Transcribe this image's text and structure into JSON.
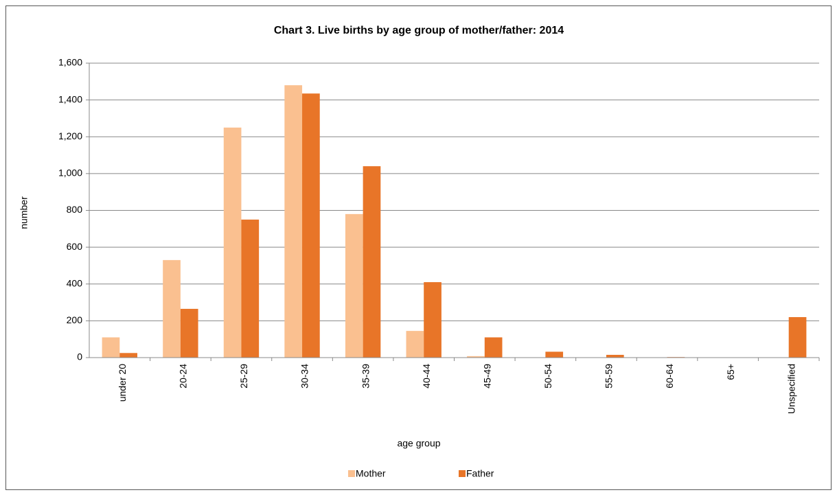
{
  "chart_data": {
    "type": "bar",
    "title": "Chart 3. Live births by age group of mother/father: 2014",
    "x_label": "age group",
    "y_label": "number",
    "categories": [
      "under 20",
      "20-24",
      "25-29",
      "30-34",
      "35-39",
      "40-44",
      "45-49",
      "50-54",
      "55-59",
      "60-64",
      "65+",
      "Unspecified"
    ],
    "series": [
      {
        "name": "Mother",
        "color": "#fac090",
        "values": [
          110,
          530,
          1250,
          1480,
          780,
          145,
          8,
          1,
          0,
          0,
          0,
          0
        ]
      },
      {
        "name": "Father",
        "color": "#e87528",
        "values": [
          25,
          265,
          750,
          1435,
          1040,
          410,
          110,
          32,
          15,
          3,
          1,
          220
        ]
      }
    ],
    "ylim": [
      0,
      1600
    ],
    "yticks": [
      0,
      200,
      400,
      600,
      800,
      {
        "value": 1000,
        "label": "1,000"
      },
      {
        "value": 1200,
        "label": "1,200"
      },
      {
        "value": 1400,
        "label": "1,400"
      },
      {
        "value": 1600,
        "label": "1,600"
      }
    ],
    "grid": true,
    "legend": "bottom"
  }
}
